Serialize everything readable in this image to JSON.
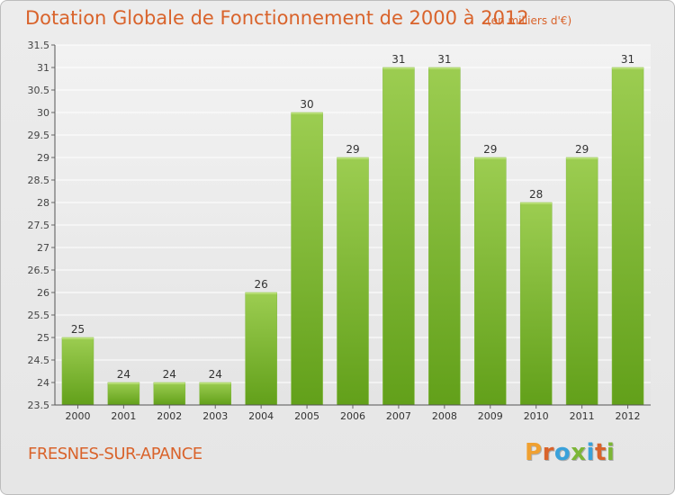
{
  "header": {
    "title": "Dotation Globale de Fonctionnement de 2000 à 2012",
    "unit": "(en milliers d'€)"
  },
  "footer": {
    "commune": "FRESNES-SUR-APANCE",
    "logo_letters": [
      "P",
      "r",
      "o",
      "x",
      "i",
      "t",
      "i"
    ]
  },
  "colors": {
    "accent": "#d9632b",
    "bar_top": "#9ccd51",
    "bar_bottom": "#62a01a",
    "logo": [
      "#f0a030",
      "#d9632b",
      "#3aa1da",
      "#7cb636",
      "#3aa1da",
      "#d9632b",
      "#7cb636"
    ]
  },
  "chart_data": {
    "type": "bar",
    "categories": [
      "2000",
      "2001",
      "2002",
      "2003",
      "2004",
      "2005",
      "2006",
      "2007",
      "2008",
      "2009",
      "2010",
      "2011",
      "2012"
    ],
    "values": [
      25,
      24,
      24,
      24,
      26,
      30,
      29,
      31,
      31,
      29,
      28,
      29,
      31
    ],
    "ylim": [
      23.5,
      31.5
    ],
    "yticks": [
      "23.5",
      "24",
      "24.5",
      "25",
      "25.5",
      "26",
      "26.5",
      "27",
      "27.5",
      "28",
      "28.5",
      "29",
      "29.5",
      "30",
      "30.5",
      "31",
      "31.5"
    ],
    "grid": "horizontal",
    "legend": "none"
  }
}
